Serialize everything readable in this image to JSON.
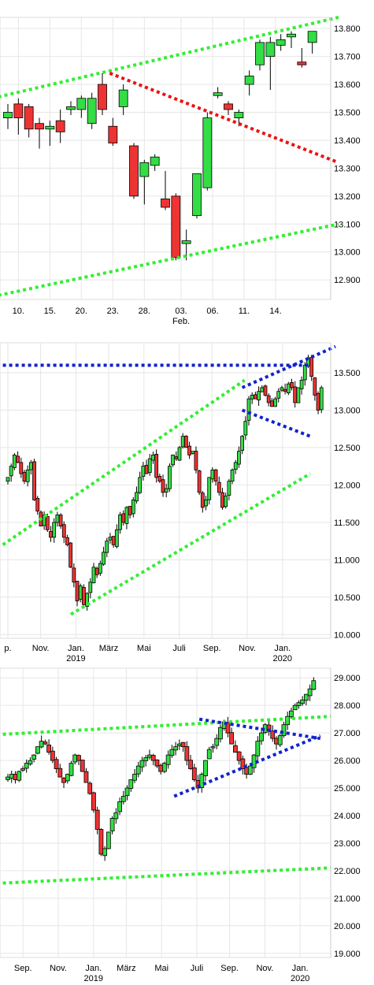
{
  "colors": {
    "up": "#33dd44",
    "down": "#ee3333",
    "green_line": "#33ee33",
    "red_line": "#ee1111",
    "blue_line": "#1122cc"
  },
  "chart_data": [
    {
      "type": "candlestick",
      "ylim": [
        12830,
        13840
      ],
      "yticks": [
        {
          "v": 13800,
          "label": "13.800"
        },
        {
          "v": 13700,
          "label": "13.700"
        },
        {
          "v": 13600,
          "label": "13.600"
        },
        {
          "v": 13500,
          "label": "13.500"
        },
        {
          "v": 13400,
          "label": "13.400"
        },
        {
          "v": 13300,
          "label": "13.300"
        },
        {
          "v": 13200,
          "label": "13.200"
        },
        {
          "v": 13100,
          "label": "13.100"
        },
        {
          "v": 13000,
          "label": "13.000"
        },
        {
          "v": 12900,
          "label": "12.900"
        }
      ],
      "xdomain": [
        0,
        30
      ],
      "xticks": [
        {
          "x": 1,
          "label": "10."
        },
        {
          "x": 4,
          "label": "15."
        },
        {
          "x": 7,
          "label": "20."
        },
        {
          "x": 10,
          "label": "23."
        },
        {
          "x": 13,
          "label": "28."
        },
        {
          "x": 16.5,
          "label": "03."
        },
        {
          "x": 19.5,
          "label": "06."
        },
        {
          "x": 22.5,
          "label": "11."
        },
        {
          "x": 25.5,
          "label": "14."
        }
      ],
      "xsub": [
        {
          "x": 16.5,
          "label": "Feb."
        }
      ],
      "candles": [
        {
          "x": 0,
          "o": 13480,
          "h": 13530,
          "l": 13440,
          "c": 13500
        },
        {
          "x": 1,
          "o": 13530,
          "h": 13550,
          "l": 13420,
          "c": 13480
        },
        {
          "x": 2,
          "o": 13520,
          "h": 13530,
          "l": 13410,
          "c": 13440
        },
        {
          "x": 3,
          "o": 13460,
          "h": 13480,
          "l": 13370,
          "c": 13440
        },
        {
          "x": 4,
          "o": 13440,
          "h": 13470,
          "l": 13380,
          "c": 13450
        },
        {
          "x": 5,
          "o": 13470,
          "h": 13510,
          "l": 13390,
          "c": 13430
        },
        {
          "x": 6,
          "o": 13510,
          "h": 13540,
          "l": 13490,
          "c": 13520
        },
        {
          "x": 7,
          "o": 13510,
          "h": 13560,
          "l": 13480,
          "c": 13550
        },
        {
          "x": 8,
          "o": 13460,
          "h": 13570,
          "l": 13440,
          "c": 13550
        },
        {
          "x": 9,
          "o": 13600,
          "h": 13640,
          "l": 13490,
          "c": 13510
        },
        {
          "x": 10,
          "o": 13450,
          "h": 13480,
          "l": 13380,
          "c": 13390
        },
        {
          "x": 11,
          "o": 13520,
          "h": 13600,
          "l": 13490,
          "c": 13580
        },
        {
          "x": 12,
          "o": 13380,
          "h": 13390,
          "l": 13190,
          "c": 13200
        },
        {
          "x": 13,
          "o": 13270,
          "h": 13330,
          "l": 13170,
          "c": 13320
        },
        {
          "x": 14,
          "o": 13310,
          "h": 13350,
          "l": 13290,
          "c": 13340
        },
        {
          "x": 15,
          "o": 13190,
          "h": 13290,
          "l": 13150,
          "c": 13160
        },
        {
          "x": 16,
          "o": 13200,
          "h": 13210,
          "l": 12970,
          "c": 12980
        },
        {
          "x": 17,
          "o": 13030,
          "h": 13080,
          "l": 12970,
          "c": 13040
        },
        {
          "x": 18,
          "o": 13130,
          "h": 13280,
          "l": 13120,
          "c": 13280
        },
        {
          "x": 19,
          "o": 13230,
          "h": 13500,
          "l": 13220,
          "c": 13480
        },
        {
          "x": 20,
          "o": 13560,
          "h": 13590,
          "l": 13550,
          "c": 13570
        },
        {
          "x": 21,
          "o": 13530,
          "h": 13540,
          "l": 13490,
          "c": 13510
        },
        {
          "x": 22,
          "o": 13480,
          "h": 13510,
          "l": 13450,
          "c": 13500
        },
        {
          "x": 23,
          "o": 13600,
          "h": 13650,
          "l": 13560,
          "c": 13630
        },
        {
          "x": 24,
          "o": 13670,
          "h": 13760,
          "l": 13650,
          "c": 13750
        },
        {
          "x": 25,
          "o": 13700,
          "h": 13770,
          "l": 13580,
          "c": 13750
        },
        {
          "x": 26,
          "o": 13740,
          "h": 13780,
          "l": 13720,
          "c": 13760
        },
        {
          "x": 27,
          "o": 13770,
          "h": 13790,
          "l": 13730,
          "c": 13780
        },
        {
          "x": 28,
          "o": 13680,
          "h": 13730,
          "l": 13660,
          "c": 13670
        },
        {
          "x": 29,
          "o": 13750,
          "h": 13790,
          "l": 13710,
          "c": 13790
        }
      ],
      "lines": [
        {
          "color": "green_line",
          "from": [
            -1.5,
            13550
          ],
          "to": [
            31.5,
            13840
          ]
        },
        {
          "color": "red_line",
          "from": [
            9.7,
            13640
          ],
          "to": [
            31.5,
            13320
          ]
        },
        {
          "color": "green_line",
          "from": [
            -1.5,
            12840
          ],
          "to": [
            31.5,
            13100
          ]
        }
      ]
    },
    {
      "type": "candlestick",
      "ylim": [
        9950,
        13900
      ],
      "yticks": [
        {
          "v": 13500,
          "label": "13.500"
        },
        {
          "v": 13000,
          "label": "13.000"
        },
        {
          "v": 12500,
          "label": "12.500"
        },
        {
          "v": 12000,
          "label": "12.000"
        },
        {
          "v": 11500,
          "label": "11.500"
        },
        {
          "v": 11000,
          "label": "11.000"
        },
        {
          "v": 10500,
          "label": "10.500"
        },
        {
          "v": 10000,
          "label": "10.000"
        }
      ],
      "xdomain": [
        0,
        125
      ],
      "xticks": [
        {
          "x": 0,
          "label": "p."
        },
        {
          "x": 13,
          "label": "Nov."
        },
        {
          "x": 27,
          "label": "Jan."
        },
        {
          "x": 40,
          "label": "März"
        },
        {
          "x": 54,
          "label": "Mai"
        },
        {
          "x": 68,
          "label": "Juli"
        },
        {
          "x": 81,
          "label": "Sep."
        },
        {
          "x": 95,
          "label": "Nov."
        },
        {
          "x": 109,
          "label": "Jan."
        }
      ],
      "xsub": [
        {
          "x": 27,
          "label": "2019"
        },
        {
          "x": 109,
          "label": "2020"
        }
      ],
      "closes": [
        12100,
        12250,
        12400,
        12300,
        12150,
        12050,
        12200,
        12300,
        11800,
        11650,
        11450,
        11600,
        11400,
        11300,
        11500,
        11600,
        11450,
        11300,
        11200,
        10900,
        10700,
        10450,
        10650,
        10400,
        10550,
        10700,
        10900,
        10800,
        10950,
        11100,
        11250,
        11300,
        11200,
        11400,
        11600,
        11500,
        11700,
        11600,
        11800,
        11900,
        12100,
        12250,
        12150,
        12350,
        12400,
        12100,
        12050,
        11900,
        11950,
        12250,
        12400,
        12350,
        12500,
        12650,
        12500,
        12400,
        12450,
        12200,
        11900,
        11700,
        11800,
        12100,
        12200,
        12050,
        11900,
        11700,
        11850,
        12050,
        12200,
        12300,
        12450,
        12650,
        12850,
        13150,
        13200,
        13150,
        13250,
        13300,
        13200,
        13100,
        13050,
        13150,
        13250,
        13300,
        13250,
        13350,
        13300,
        13100,
        13300,
        13400,
        13600,
        13700,
        13450,
        13200,
        13000,
        13300
      ],
      "closes_start": 0,
      "candle_spacing": 1.31,
      "lines": [
        {
          "color": "green_line",
          "from": [
            -2,
            11200
          ],
          "to": [
            94,
            13400
          ]
        },
        {
          "color": "green_line",
          "from": [
            25,
            10270
          ],
          "to": [
            120,
            12150
          ]
        },
        {
          "color": "blue_line",
          "from": [
            -2,
            13600
          ],
          "to": [
            120,
            13600
          ]
        },
        {
          "color": "blue_line",
          "from": [
            93,
            13300
          ],
          "to": [
            130,
            13850
          ]
        },
        {
          "color": "blue_line",
          "from": [
            93,
            13000
          ],
          "to": [
            120,
            12650
          ]
        }
      ]
    },
    {
      "type": "candlestick",
      "ylim": [
        18850,
        29350
      ],
      "yticks": [
        {
          "v": 29000,
          "label": "29.000"
        },
        {
          "v": 28000,
          "label": "28.000"
        },
        {
          "v": 27000,
          "label": "27.000"
        },
        {
          "v": 26000,
          "label": "26.000"
        },
        {
          "v": 25000,
          "label": "25.000"
        },
        {
          "v": 24000,
          "label": "24.000"
        },
        {
          "v": 23000,
          "label": "23.000"
        },
        {
          "v": 22000,
          "label": "22.000"
        },
        {
          "v": 21000,
          "label": "21.000"
        },
        {
          "v": 20000,
          "label": "20.000"
        },
        {
          "v": 19000,
          "label": "19.000"
        }
      ],
      "xdomain": [
        0,
        125
      ],
      "xticks": [
        {
          "x": 6,
          "label": "Sep."
        },
        {
          "x": 20,
          "label": "Nov."
        },
        {
          "x": 34,
          "label": "Jan."
        },
        {
          "x": 47,
          "label": "März"
        },
        {
          "x": 61,
          "label": "Mai"
        },
        {
          "x": 75,
          "label": "Juli"
        },
        {
          "x": 88,
          "label": "Sep."
        },
        {
          "x": 102,
          "label": "Nov."
        },
        {
          "x": 116,
          "label": "Jan."
        }
      ],
      "xsub": [
        {
          "x": 34,
          "label": "2019"
        },
        {
          "x": 116,
          "label": "2020"
        }
      ],
      "closes": [
        25400,
        25500,
        25300,
        25600,
        25700,
        25900,
        26000,
        26200,
        26500,
        26700,
        26600,
        26300,
        26000,
        25700,
        25400,
        25200,
        25500,
        25900,
        26200,
        26000,
        25600,
        25200,
        24800,
        24200,
        23500,
        22600,
        22800,
        23400,
        23900,
        24100,
        24500,
        24700,
        25000,
        25300,
        25500,
        25800,
        26000,
        26100,
        26200,
        26000,
        25800,
        25600,
        25900,
        26200,
        26400,
        26500,
        26600,
        26500,
        26000,
        25700,
        25300,
        25000,
        25500,
        26000,
        26400,
        26500,
        26800,
        27200,
        27400,
        27000,
        26600,
        26300,
        26000,
        25700,
        25500,
        25800,
        26200,
        26700,
        27000,
        27300,
        27100,
        26800,
        26600,
        26900,
        27300,
        27600,
        27800,
        28000,
        28100,
        28200,
        28400,
        28600,
        28900
      ],
      "closes_start": 0,
      "candle_spacing": 1.48,
      "lines": [
        {
          "color": "green_line",
          "from": [
            -2,
            26950
          ],
          "to": [
            128,
            27600
          ]
        },
        {
          "color": "green_line",
          "from": [
            -2,
            21550
          ],
          "to": [
            128,
            22100
          ]
        },
        {
          "color": "blue_line",
          "from": [
            66,
            24700
          ],
          "to": [
            124,
            26900
          ]
        },
        {
          "color": "blue_line",
          "from": [
            76,
            27500
          ],
          "to": [
            124,
            26800
          ]
        }
      ]
    }
  ]
}
